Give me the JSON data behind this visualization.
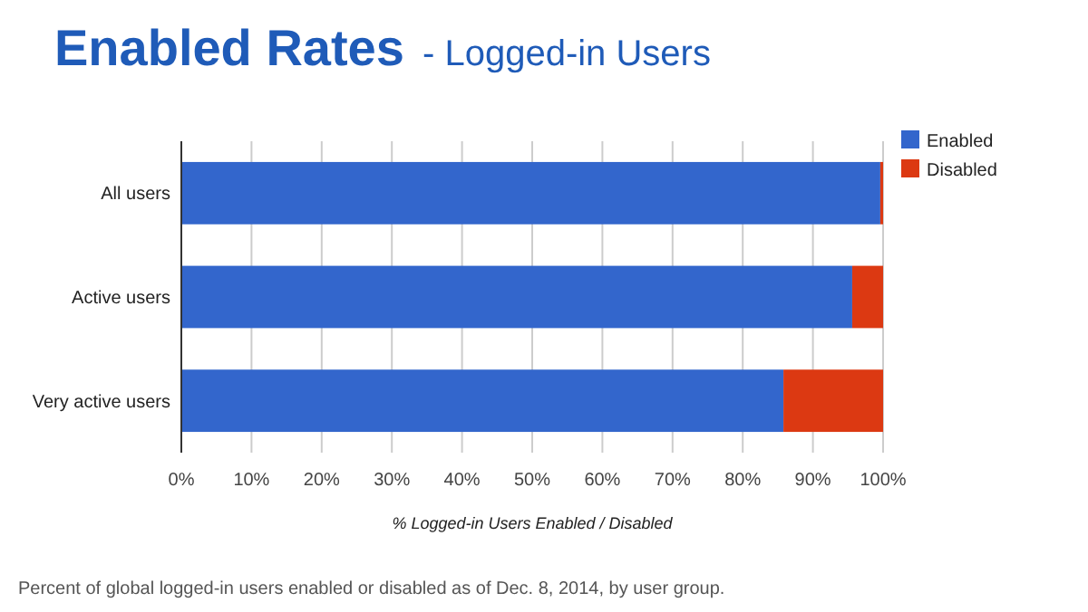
{
  "chart_data": {
    "type": "bar",
    "title": "Enabled Rates",
    "subtitle": "- Logged-in Users",
    "xlabel": "% Logged-in Users Enabled / Disabled",
    "orientation": "horizontal",
    "stacked": true,
    "categories": [
      "All users",
      "Active users",
      "Very active users"
    ],
    "series": [
      {
        "name": "Enabled",
        "color": "#3366cc",
        "values": [
          99.6,
          95.6,
          85.8
        ]
      },
      {
        "name": "Disabled",
        "color": "#dc3912",
        "values": [
          0.4,
          4.4,
          14.2
        ]
      }
    ],
    "xlim": [
      0,
      100
    ],
    "xticks": [
      {
        "value": 0,
        "label": "0%"
      },
      {
        "value": 10,
        "label": "10%"
      },
      {
        "value": 20,
        "label": "20%"
      },
      {
        "value": 30,
        "label": "30%"
      },
      {
        "value": 40,
        "label": "40%"
      },
      {
        "value": 50,
        "label": "50%"
      },
      {
        "value": 60,
        "label": "60%"
      },
      {
        "value": 70,
        "label": "70%"
      },
      {
        "value": 80,
        "label": "80%"
      },
      {
        "value": 90,
        "label": "90%"
      },
      {
        "value": 100,
        "label": "100%"
      }
    ],
    "grid": "x",
    "legend": "top right",
    "annotations": [
      "Percent of global logged-in users enabled or disabled as of Dec. 8, 2014, by user group."
    ]
  }
}
